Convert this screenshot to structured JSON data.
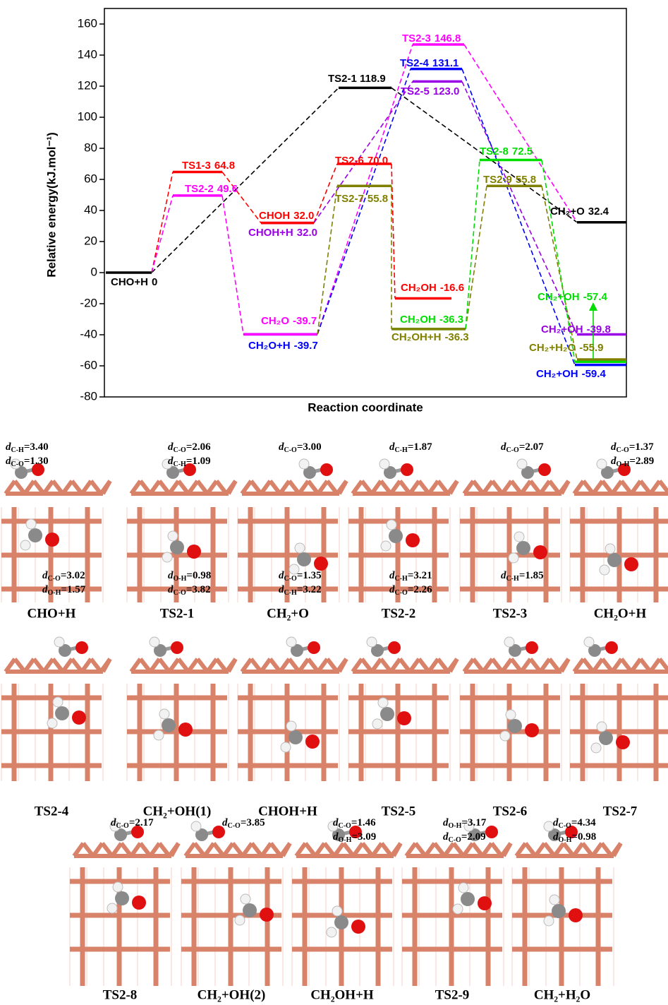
{
  "chart_data": {
    "type": "energy-profile",
    "x_label": "Reaction coordinate",
    "y_label": "Relative energy(kJ.mol⁻¹)",
    "ylim": [
      -80,
      170
    ],
    "yticks": [
      -80,
      -60,
      -40,
      -20,
      0,
      20,
      40,
      60,
      80,
      100,
      120,
      140,
      160
    ],
    "levels": [
      {
        "label": "CHO+H",
        "value": 0,
        "color": "#000000"
      },
      {
        "label": "TS1-3",
        "value": 64.8,
        "color": "#ff0000"
      },
      {
        "label": "TS2-2",
        "value": 49.6,
        "color": "#ff00ff"
      },
      {
        "label": "CHOH+H",
        "value": 32.0,
        "value_label": "32.0",
        "color": "#9900e6"
      },
      {
        "label": "CHOH",
        "value": 32.0,
        "value_label": "32.0",
        "color": "#ff0000"
      },
      {
        "label": "CH₂O+H",
        "value": -39.7,
        "color": "#0000ff"
      },
      {
        "label": "CH₂O",
        "value": -39.7,
        "color": "#ff00ff"
      },
      {
        "label": "TS2-1",
        "value": 118.9,
        "color": "#000000"
      },
      {
        "label": "TS2-6",
        "value": 70.0,
        "value_label": "70.0",
        "color": "#ff0000"
      },
      {
        "label": "TS2-7",
        "value": 55.8,
        "color": "#808000"
      },
      {
        "label": "TS2-3",
        "value": 146.8,
        "color": "#ff00ff"
      },
      {
        "label": "TS2-4",
        "value": 131.1,
        "color": "#0000ff"
      },
      {
        "label": "TS2-5",
        "value": 123.0,
        "value_label": "123.0",
        "color": "#9900e6"
      },
      {
        "label": "CH₂OH",
        "value": -16.6,
        "color": "#ff0000"
      },
      {
        "label": "CH₂OH",
        "value": -36.3,
        "color": "#00dd00"
      },
      {
        "label": "CH₂OH+H",
        "value": -36.3,
        "color": "#808000"
      },
      {
        "label": "TS2-8",
        "value": 72.5,
        "color": "#00dd00"
      },
      {
        "label": "TS2-9",
        "value": 55.8,
        "color": "#808000"
      },
      {
        "label": "CH₂+O",
        "value": 32.4,
        "color": "#000000"
      },
      {
        "label": "CH₂+OH",
        "value": -57.4,
        "color": "#00dd00"
      },
      {
        "label": "CH₂+OH",
        "value": -39.8,
        "color": "#9900e6"
      },
      {
        "label": "CH₂+H₂O",
        "value": -55.9,
        "color": "#808000"
      },
      {
        "label": "CH₂+OH",
        "value": -59.4,
        "color": "#0000ff"
      }
    ],
    "connectors": [
      {
        "color": "#000000",
        "from": 0,
        "to": 7
      },
      {
        "color": "#000000",
        "from": 7,
        "to": 18
      },
      {
        "color": "#ff0000",
        "from": 0,
        "to": 1
      },
      {
        "color": "#ff0000",
        "from": 1,
        "to": 4
      },
      {
        "color": "#ff0000",
        "from": 4,
        "to": 8
      },
      {
        "color": "#ff0000",
        "from": 8,
        "to": 13
      },
      {
        "color": "#ff00ff",
        "from": 0,
        "to": 2
      },
      {
        "color": "#ff00ff",
        "from": 2,
        "to": 6
      },
      {
        "color": "#ff00ff",
        "from": 6,
        "to": 10
      },
      {
        "color": "#ff00ff",
        "from": 10,
        "to": 18
      },
      {
        "color": "#9900e6",
        "from": 3,
        "to": 12
      },
      {
        "color": "#9900e6",
        "from": 12,
        "to": 20
      },
      {
        "color": "#0000ff",
        "from": 5,
        "to": 11
      },
      {
        "color": "#0000ff",
        "from": 11,
        "to": 22
      },
      {
        "color": "#808000",
        "from": 5,
        "to": 9
      },
      {
        "color": "#808000",
        "from": 9,
        "to": 15
      },
      {
        "color": "#808000",
        "from": 15,
        "to": 17
      },
      {
        "color": "#808000",
        "from": 17,
        "to": 21
      },
      {
        "color": "#00dd00",
        "from": 14,
        "to": 16
      },
      {
        "color": "#00dd00",
        "from": 16,
        "to": 19
      }
    ]
  },
  "structures": [
    {
      "caption": "CHO+H",
      "annotations": [
        "dC-H=3.40",
        "dC-O=1.30"
      ]
    },
    {
      "caption": "TS2-1",
      "annotations": [
        "dC-O=2.06",
        "dC-H=1.09"
      ]
    },
    {
      "caption": "CH₂+O",
      "annotations": [
        "dC-O=3.00"
      ]
    },
    {
      "caption": "TS2-2",
      "annotations": [
        "dC-H=1.87"
      ]
    },
    {
      "caption": "TS2-3",
      "annotations": [
        "dC-O=2.07"
      ]
    },
    {
      "caption": "CH₂O+H",
      "annotations": [
        "dC-O=1.37",
        "dO-H=2.89"
      ]
    },
    {
      "caption": "TS2-4",
      "annotations": [
        "dC-O=3.02",
        "dO-H=1.57"
      ]
    },
    {
      "caption": "CH₂+OH(1)",
      "annotations": [
        "dO-H=0.98",
        "dC-O=3.82"
      ]
    },
    {
      "caption": "CHOH+H",
      "annotations": [
        "dC-O=1.35",
        "dC-H=3.22"
      ]
    },
    {
      "caption": "TS2-5",
      "annotations": [
        "dC-H=3.21",
        "dC-O=2.26"
      ]
    },
    {
      "caption": "TS2-6",
      "annotations": [
        "dC-H=1.85"
      ]
    },
    {
      "caption": "TS2-7",
      "annotations": []
    },
    {
      "caption": "TS2-8",
      "annotations": [
        "dC-O=2.17"
      ]
    },
    {
      "caption": "CH₂+OH(2)",
      "annotations": [
        "dC-O=3.85"
      ]
    },
    {
      "caption": "CH₂OH+H",
      "annotations": [
        "dC-O=1.46",
        "dO-H=3.09"
      ]
    },
    {
      "caption": "TS2-9",
      "annotations": [
        "dO-H=3.17",
        "dC-O=2.09"
      ]
    },
    {
      "caption": "CH₂+H₂O",
      "annotations": [
        "dC-O=4.34",
        "dO-H=0.98"
      ]
    }
  ]
}
